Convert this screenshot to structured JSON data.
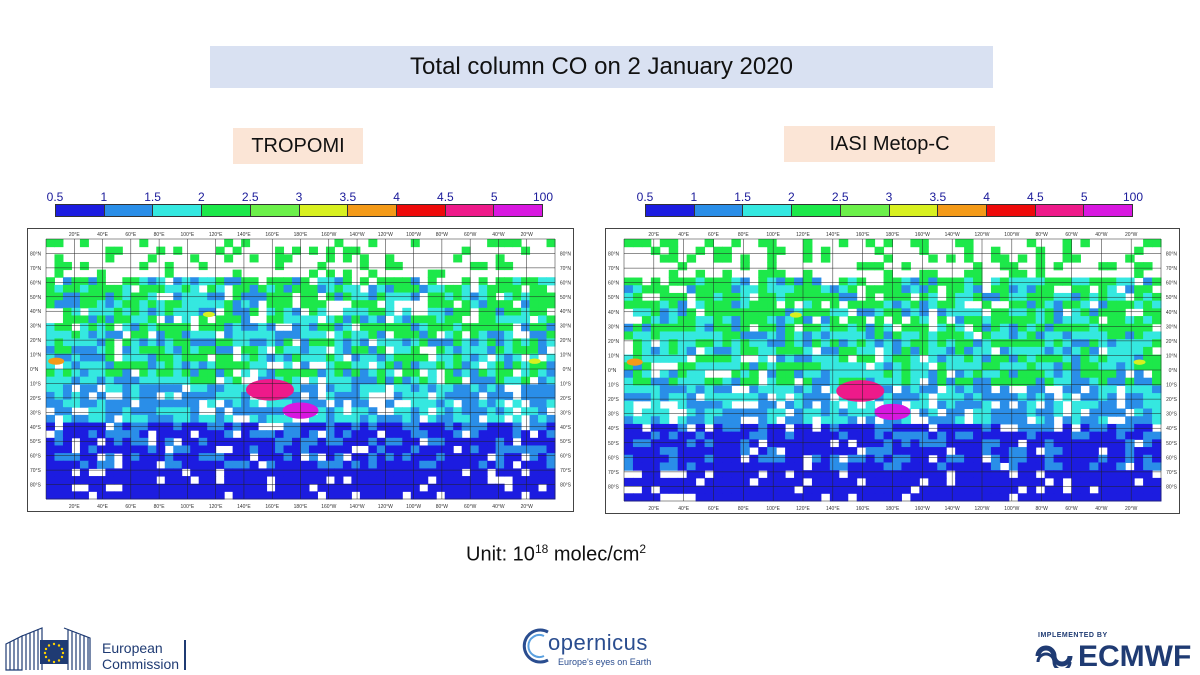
{
  "title": "Total column CO on 2 January 2020",
  "panels": [
    {
      "label": "TROPOMI"
    },
    {
      "label": "IASI Metop-C"
    }
  ],
  "colorbar": {
    "ticks": [
      "0.5",
      "1",
      "1.5",
      "2",
      "2.5",
      "3",
      "3.5",
      "4",
      "4.5",
      "5",
      "100"
    ],
    "colors": [
      "#1c1ce0",
      "#2a8ee8",
      "#35e8e0",
      "#1de84a",
      "#6cf04a",
      "#d8f020",
      "#f49a18",
      "#ee0a0a",
      "#ee1a8a",
      "#d818e0"
    ]
  },
  "map_axes": {
    "lon_labels": [
      "20°E",
      "40°E",
      "60°E",
      "80°E",
      "100°E",
      "120°E",
      "140°E",
      "160°E",
      "180°E",
      "160°W",
      "140°W",
      "120°W",
      "100°W",
      "80°W",
      "60°W",
      "40°W",
      "20°W"
    ],
    "lat_labels": [
      "80°N",
      "70°N",
      "60°N",
      "50°N",
      "40°N",
      "30°N",
      "20°N",
      "10°N",
      "0°N",
      "10°S",
      "20°S",
      "30°S",
      "40°S",
      "50°S",
      "60°S",
      "70°S",
      "80°S"
    ]
  },
  "unit": {
    "prefix": "Unit: 10",
    "exponent": "18",
    "middle": " molec/cm",
    "exponent2": "2"
  },
  "logos": {
    "ec_line1": "European",
    "ec_line2": "Commission",
    "copernicus": "opernicus",
    "copernicus_tagline": "Europe's eyes on Earth",
    "implemented_by": "IMPLEMENTED BY",
    "ecmwf": "ECMWF"
  }
}
